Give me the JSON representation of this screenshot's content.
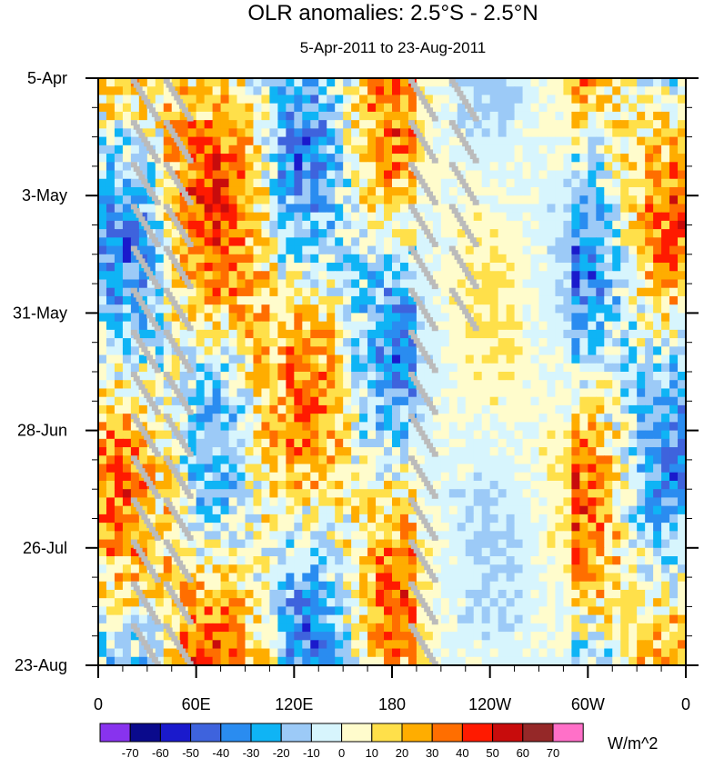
{
  "chart_data": {
    "type": "heatmap",
    "title": "OLR anomalies: 2.5°S - 2.5°N",
    "subtitle": "5-Apr-2011 to 23-Aug-2011",
    "xlabel": "",
    "ylabel": "",
    "x_ticks": [
      {
        "label": "0",
        "lon": 0
      },
      {
        "label": "60E",
        "lon": 60
      },
      {
        "label": "120E",
        "lon": 120
      },
      {
        "label": "180",
        "lon": 180
      },
      {
        "label": "120W",
        "lon": 240
      },
      {
        "label": "60W",
        "lon": 300
      },
      {
        "label": "0",
        "lon": 360
      }
    ],
    "xlim": [
      0,
      360
    ],
    "y_ticks": [
      {
        "label": "5-Apr",
        "day": 0
      },
      {
        "label": "3-May",
        "day": 28
      },
      {
        "label": "31-May",
        "day": 56
      },
      {
        "label": "28-Jun",
        "day": 84
      },
      {
        "label": "26-Jul",
        "day": 112
      },
      {
        "label": "23-Aug",
        "day": 140
      }
    ],
    "ylim": [
      0,
      140
    ],
    "units": "W/m^2",
    "colorbar": {
      "levels": [
        "-70",
        "-60",
        "-50",
        "-40",
        "-30",
        "-20",
        "-10",
        "0",
        "10",
        "20",
        "30",
        "40",
        "50",
        "60",
        "70"
      ],
      "colors": [
        "#8833ee",
        "#0a0a8c",
        "#1a1acc",
        "#3e63dd",
        "#2a8cf0",
        "#0fb4f5",
        "#9ccaf7",
        "#d7f5fd",
        "#fffccc",
        "#ffe04a",
        "#ffad00",
        "#ff6e00",
        "#ff1a00",
        "#c80c0c",
        "#952828",
        "#ff70c8"
      ]
    },
    "missing_color": "#bbbbbb"
  }
}
